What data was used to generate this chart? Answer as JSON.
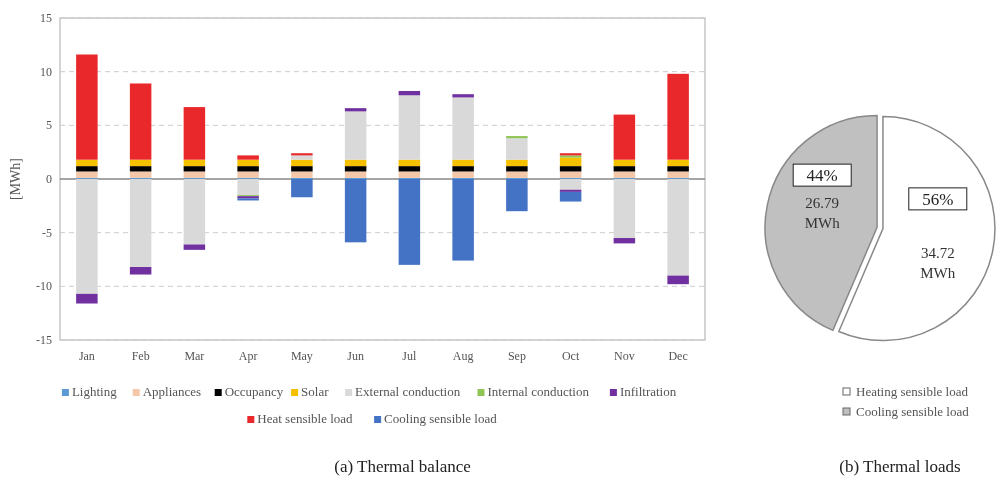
{
  "chart_data": [
    {
      "type": "bar",
      "title": "(a) Thermal balance",
      "ylabel": "[MWh]",
      "stacked": true,
      "categories": [
        "Jan",
        "Feb",
        "Mar",
        "Apr",
        "May",
        "Jun",
        "Jul",
        "Aug",
        "Sep",
        "Oct",
        "Nov",
        "Dec"
      ],
      "series": [
        {
          "name": "Lighting",
          "color": "#5b9bd5",
          "values": [
            0.1,
            0.1,
            0.1,
            0.1,
            0.1,
            0.1,
            0.1,
            0.1,
            0.1,
            0.1,
            0.1,
            0.1
          ]
        },
        {
          "name": "Appliances",
          "color": "#f4c7a8",
          "values": [
            0.6,
            0.6,
            0.6,
            0.6,
            0.6,
            0.6,
            0.6,
            0.6,
            0.6,
            0.6,
            0.6,
            0.6
          ]
        },
        {
          "name": "Occupancy",
          "color": "#000000",
          "values": [
            0.5,
            0.5,
            0.5,
            0.5,
            0.5,
            0.5,
            0.5,
            0.5,
            0.5,
            0.5,
            0.5,
            0.5
          ]
        },
        {
          "name": "Solar",
          "color": "#f5c000",
          "values": [
            0.6,
            0.6,
            0.6,
            0.6,
            0.6,
            0.6,
            0.6,
            0.6,
            0.6,
            0.8,
            0.6,
            0.6
          ]
        },
        {
          "name": "External conduction",
          "color": "#d9d9d9",
          "values": [
            -10.7,
            -8.2,
            -6.1,
            -1.5,
            0.4,
            4.5,
            6.0,
            5.8,
            2.0,
            -1.0,
            -5.5,
            -9.0
          ]
        },
        {
          "name": "Internal conduction",
          "color": "#8fc554",
          "values": [
            null,
            null,
            null,
            -0.1,
            null,
            null,
            null,
            null,
            0.2,
            0.2,
            null,
            null
          ]
        },
        {
          "name": "Infiltration",
          "color": "#7030a0",
          "values": [
            -0.9,
            -0.7,
            -0.5,
            -0.2,
            null,
            0.3,
            0.4,
            0.3,
            null,
            -0.2,
            -0.5,
            -0.8
          ]
        },
        {
          "name": "Heat sensible load",
          "color": "#e8282b",
          "values": [
            9.8,
            7.1,
            4.9,
            0.4,
            0.2,
            null,
            null,
            null,
            null,
            0.2,
            4.2,
            8.0
          ]
        },
        {
          "name": "Cooling sensible load",
          "color": "#4472c4",
          "values": [
            null,
            null,
            null,
            -0.2,
            -1.7,
            -5.9,
            -8.0,
            -7.6,
            -3.0,
            -0.9,
            null,
            null
          ]
        }
      ],
      "ylim": [
        -15,
        15
      ],
      "yticks": [
        -15,
        -10,
        -5,
        0,
        5,
        10,
        15
      ],
      "grid": "y",
      "legend": "bottom"
    },
    {
      "type": "pie",
      "title": "(b) Thermal loads",
      "categories": [
        "Heating sensible load",
        "Cooling sensible load"
      ],
      "values": [
        34.72,
        26.79
      ],
      "colors": [
        "#ffffff",
        "#c0c0c0"
      ],
      "value_labels": [
        "34.72 MWh",
        "26.79 MWh"
      ],
      "annotations": [
        "56%",
        "44%"
      ],
      "legend": "bottom"
    }
  ]
}
